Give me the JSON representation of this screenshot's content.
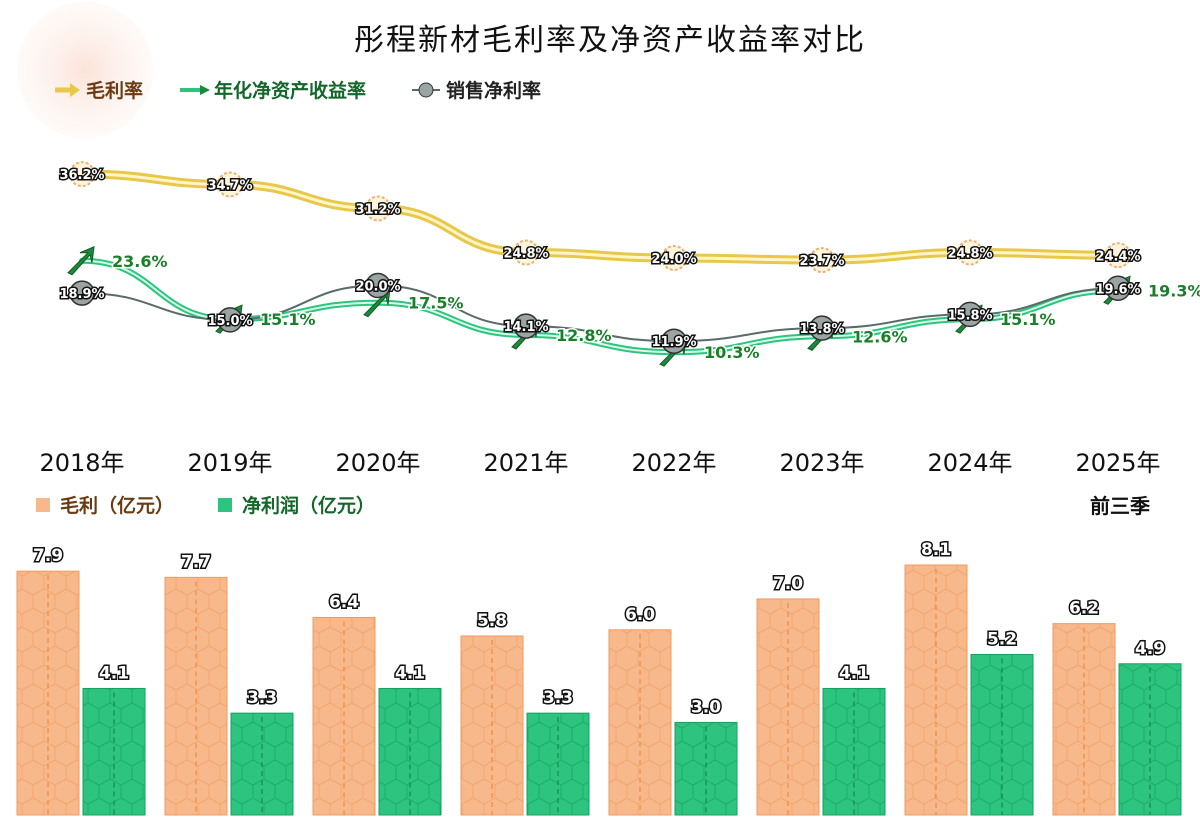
{
  "chart_data": [
    {
      "type": "line",
      "title": "彤程新材毛利率及净资产收益率对比",
      "categories": [
        "2018年",
        "2019年",
        "2020年",
        "2021年",
        "2022年",
        "2023年",
        "2024年",
        "2025年前三季"
      ],
      "unit": "%",
      "series": [
        {
          "name": "毛利率",
          "values": [
            36.2,
            34.7,
            31.2,
            24.8,
            24.0,
            23.7,
            24.8,
            24.4
          ],
          "color": "#e8c84a"
        },
        {
          "name": "年化净资产收益率",
          "values": [
            23.6,
            15.1,
            17.5,
            12.8,
            10.3,
            12.6,
            15.1,
            19.3
          ],
          "color": "#1b8a3a"
        },
        {
          "name": "销售净利率",
          "values": [
            18.9,
            15.0,
            20.0,
            14.1,
            11.9,
            13.8,
            15.8,
            19.6
          ],
          "color": "#5a6b6a"
        }
      ],
      "labels": {
        "毛利率": [
          "36.2%",
          "34.7%",
          "31.2%",
          "24.8%",
          "24.0%",
          "23.7%",
          "24.8%",
          "24.4%"
        ],
        "年化净资产收益率": [
          "23.6%",
          "15.1%",
          "17.5%",
          "12.8%",
          "10.3%",
          "12.6%",
          "15.1%",
          "19.3%"
        ],
        "销售净利率": [
          "18.9%",
          "15.0%",
          "20.0%",
          "14.1%",
          "11.9%",
          "13.8%",
          "15.8%",
          "19.6%"
        ]
      }
    },
    {
      "type": "bar",
      "categories": [
        "2018年",
        "2019年",
        "2020年",
        "2021年",
        "2022年",
        "2023年",
        "2024年",
        "2025年前三季"
      ],
      "series": [
        {
          "name": "毛利（亿元）",
          "values": [
            7.9,
            7.7,
            6.4,
            5.8,
            6.0,
            7.0,
            8.1,
            6.2
          ],
          "color": "#f7b98b"
        },
        {
          "name": "净利润（亿元）",
          "values": [
            4.1,
            3.3,
            4.1,
            3.3,
            3.0,
            4.1,
            5.2,
            4.9
          ],
          "color": "#2cc47e"
        }
      ],
      "value_labels": {
        "毛利（亿元）": [
          "7.9",
          "7.7",
          "6.4",
          "5.8",
          "6.0",
          "7.0",
          "8.1",
          "6.2"
        ],
        "净利润（亿元）": [
          "4.1",
          "3.3",
          "4.1",
          "3.3",
          "3.0",
          "4.1",
          "5.2",
          "4.9"
        ]
      }
    }
  ],
  "years": [
    "2018年",
    "2019年",
    "2020年",
    "2021年",
    "2022年",
    "2023年",
    "2024年",
    "2025年"
  ],
  "year_sub": "前三季"
}
